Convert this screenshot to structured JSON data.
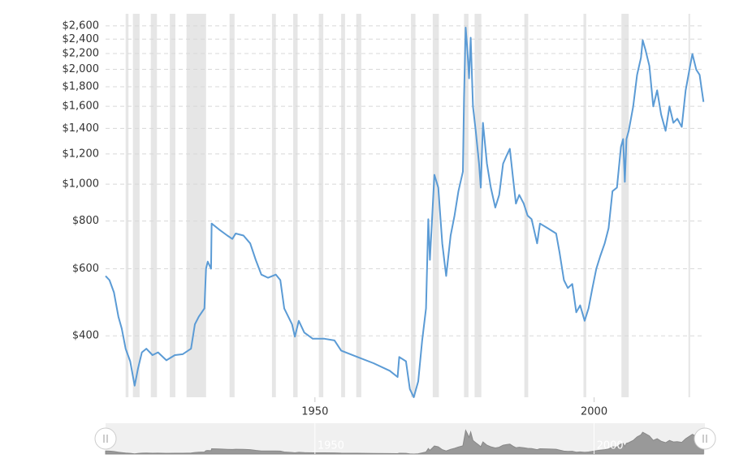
{
  "chart_data": {
    "type": "line",
    "log_scale": true,
    "grid": true,
    "color": "#5b9bd5",
    "recession_color": "#e6e6e6",
    "xlim": [
      1912.5,
      2019.7
    ],
    "xticks": [
      1950,
      2000
    ],
    "ylim": [
      276,
      2797
    ],
    "yticks": [
      {
        "value": 400,
        "label": "$400"
      },
      {
        "value": 600,
        "label": "$600"
      },
      {
        "value": 800,
        "label": "$800"
      },
      {
        "value": 1000,
        "label": "$1,000"
      },
      {
        "value": 1200,
        "label": "$1,200"
      },
      {
        "value": 1400,
        "label": "$1,400"
      },
      {
        "value": 1600,
        "label": "$1,600"
      },
      {
        "value": 1800,
        "label": "$1,800"
      },
      {
        "value": 2000,
        "label": "$2,000"
      },
      {
        "value": 2200,
        "label": "$2,200"
      },
      {
        "value": 2400,
        "label": "$2,400"
      },
      {
        "value": 2600,
        "label": "$2,600"
      }
    ],
    "recessions": [
      [
        1916.1,
        1916.6
      ],
      [
        1917.4,
        1918.6
      ],
      [
        1920.6,
        1921.7
      ],
      [
        1924.0,
        1925.0
      ],
      [
        1927.0,
        1930.5
      ],
      [
        1934.7,
        1935.6
      ],
      [
        1942.3,
        1943.0
      ],
      [
        1946.1,
        1946.9
      ],
      [
        1950.7,
        1951.5
      ],
      [
        1954.7,
        1955.4
      ],
      [
        1957.4,
        1958.3
      ],
      [
        1967.2,
        1968.0
      ],
      [
        1971.1,
        1972.2
      ],
      [
        1976.7,
        1977.5
      ],
      [
        1978.6,
        1979.8
      ],
      [
        1987.5,
        1988.2
      ],
      [
        1998.1,
        1998.6
      ],
      [
        2004.9,
        2006.2
      ],
      [
        2016.9,
        2017.2
      ]
    ],
    "x": [
      1912.5,
      1913.2,
      1914.0,
      1914.8,
      1915.4,
      1916.1,
      1916.9,
      1917.7,
      1918.3,
      1919.0,
      1919.8,
      1920.9,
      1921.9,
      1923.4,
      1924.9,
      1926.3,
      1927.8,
      1928.5,
      1929.2,
      1930.2,
      1930.5,
      1930.8,
      1931.4,
      1931.5,
      1932.8,
      1934.3,
      1935.2,
      1935.8,
      1937.2,
      1938.4,
      1939.4,
      1940.4,
      1941.6,
      1943.0,
      1943.8,
      1944.5,
      1945.9,
      1946.4,
      1947.1,
      1948.1,
      1949.6,
      1951.7,
      1953.5,
      1954.7,
      1957.6,
      1960.5,
      1963.4,
      1964.8,
      1965.1,
      1966.3,
      1967.0,
      1967.7,
      1968.5,
      1969.2,
      1969.9,
      1970.3,
      1970.6,
      1971.4,
      1972.1,
      1972.8,
      1973.5,
      1974.3,
      1975.0,
      1975.7,
      1976.5,
      1976.7,
      1977.0,
      1977.3,
      1977.6,
      1977.9,
      1978.3,
      1978.8,
      1979.4,
      1979.7,
      1980.1,
      1980.8,
      1981.5,
      1982.3,
      1983.0,
      1983.7,
      1984.4,
      1984.9,
      1985.5,
      1986.0,
      1986.6,
      1987.4,
      1988.1,
      1988.8,
      1989.8,
      1990.3,
      1991.7,
      1993.2,
      1993.8,
      1994.6,
      1995.3,
      1996.1,
      1996.8,
      1997.5,
      1998.3,
      1999.0,
      1999.7,
      2000.4,
      2001.1,
      2001.9,
      2002.6,
      2003.3,
      2004.1,
      2004.8,
      2005.2,
      2005.5,
      2005.8,
      2006.2,
      2007.0,
      2007.7,
      2008.4,
      2008.7,
      2009.2,
      2009.9,
      2010.6,
      2011.3,
      2012.0,
      2012.8,
      2013.5,
      2014.2,
      2014.9,
      2015.7,
      2016.4,
      2017.2,
      2017.6,
      2018.3,
      2018.9,
      2019.3,
      2019.6
    ],
    "values": [
      574,
      560,
      520,
      449,
      418,
      370,
      343,
      296,
      328,
      362,
      370,
      356,
      362,
      345,
      356,
      358,
      370,
      429,
      449,
      472,
      600,
      626,
      600,
      788,
      761,
      733,
      718,
      742,
      733,
      699,
      633,
      579,
      568,
      579,
      560,
      472,
      429,
      398,
      438,
      408,
      393,
      393,
      389,
      366,
      352,
      339,
      324,
      312,
      352,
      343,
      290,
      276,
      304,
      388,
      472,
      809,
      633,
      1058,
      979,
      699,
      574,
      733,
      827,
      958,
      1078,
      1684,
      2573,
      2250,
      1894,
      2421,
      1598,
      1379,
      1131,
      979,
      1448,
      1131,
      979,
      868,
      937,
      1131,
      1194,
      1238,
      1029,
      889,
      937,
      889,
      827,
      809,
      699,
      788,
      766,
      742,
      664,
      560,
      534,
      547,
      461,
      481,
      438,
      472,
      534,
      600,
      647,
      699,
      766,
      958,
      979,
      1252,
      1313,
      1014,
      1313,
      1379,
      1598,
      1935,
      2146,
      2386,
      2250,
      2043,
      1598,
      1762,
      1523,
      1379,
      1598,
      1448,
      1484,
      1413,
      1762,
      2043,
      2194,
      1995,
      1935,
      1762,
      1643
    ]
  }
}
